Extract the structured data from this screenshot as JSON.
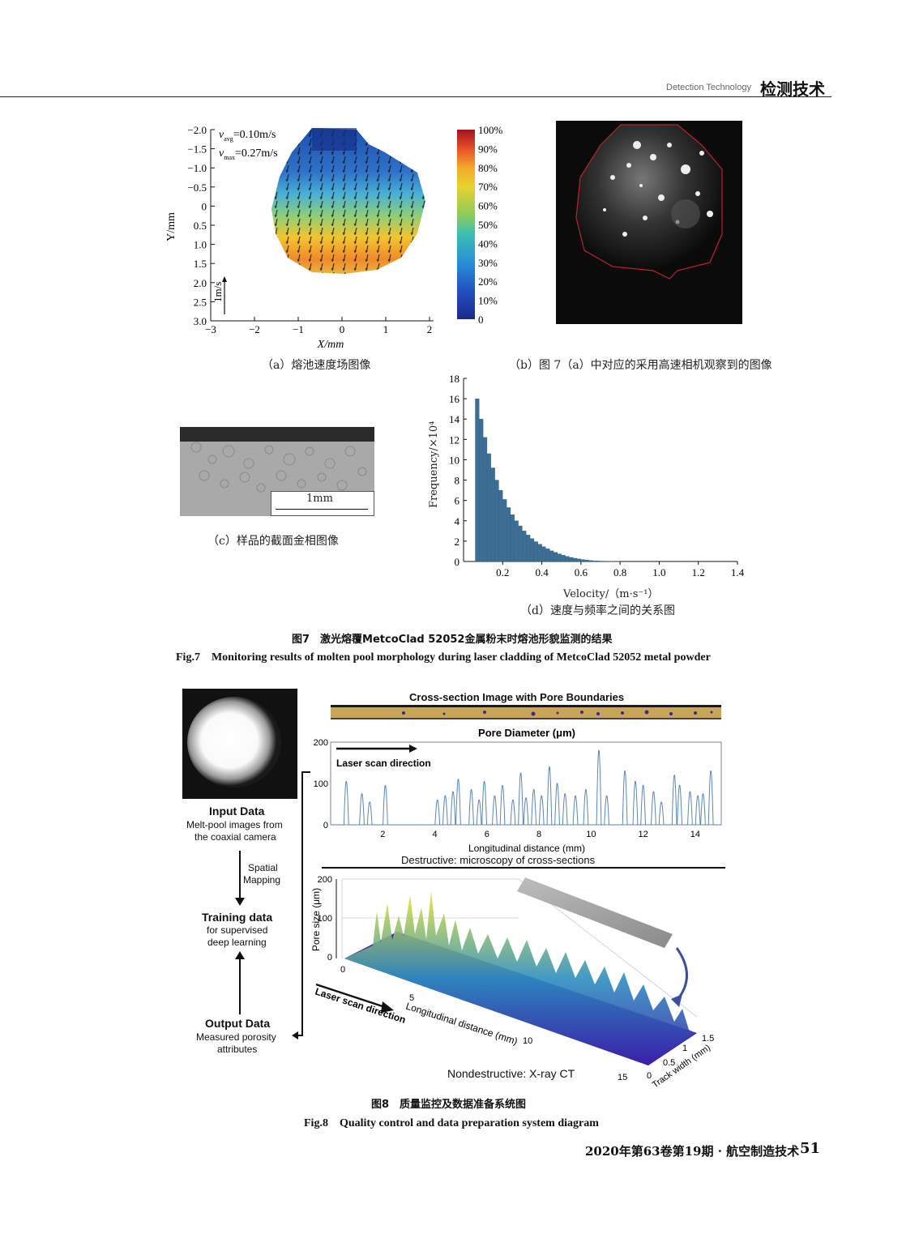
{
  "header": {
    "en": "Detection Technology",
    "cn": "检测技术"
  },
  "fig7": {
    "a": {
      "caption": "（a）熔池速度场图像",
      "v_avg_label": "v",
      "v_avg_sub": "avg",
      "v_avg_value": "=0.10m/s",
      "v_max_label": "v",
      "v_max_sub": "max",
      "v_max_value": "=0.27m/s",
      "ylabel": "Y/mm",
      "xlabel": "X/mm",
      "scale_label": "1m/s",
      "yticks": [
        "−2.0",
        "−1.5",
        "−1.0",
        "−0.5",
        "0",
        "0.5",
        "1.0",
        "1.5",
        "2.0",
        "2.5",
        "3.0"
      ],
      "xticks": [
        "−3",
        "−2",
        "−1",
        "0",
        "1",
        "2"
      ],
      "colorbar": [
        "100%",
        "90%",
        "80%",
        "70%",
        "60%",
        "50%",
        "40%",
        "30%",
        "20%",
        "10%",
        "0"
      ]
    },
    "b": {
      "caption": "（b）图 7（a）中对应的采用高速相机观察到的图像"
    },
    "c": {
      "caption": "（c）样品的截面金相图像",
      "scale_label": "1mm"
    },
    "d": {
      "caption": "（d）速度与频率之间的关系图"
    },
    "title_cn": "图7　激光熔覆MetcoClad 52052金属粉末时熔池形貌监测的结果",
    "title_en": "Fig.7　Monitoring results of molten pool morphology during laser cladding of MetcoClad 52052 metal powder"
  },
  "chart_data": [
    {
      "type": "bar",
      "xlabel": "Velocity/（m·s⁻¹）",
      "ylabel": "Frequency/×10⁴",
      "xticks": [
        0.2,
        0.4,
        0.6,
        0.8,
        1.0,
        1.2,
        1.4
      ],
      "yticks": [
        0,
        2,
        4,
        6,
        8,
        10,
        12,
        14,
        16,
        18
      ],
      "xlim": [
        0.0,
        1.4
      ],
      "ylim": [
        0,
        18
      ],
      "x": [
        0.07,
        0.09,
        0.11,
        0.13,
        0.15,
        0.17,
        0.19,
        0.21,
        0.23,
        0.25,
        0.27,
        0.29,
        0.31,
        0.33,
        0.35,
        0.37,
        0.39,
        0.41,
        0.43,
        0.45,
        0.47,
        0.49,
        0.51,
        0.53,
        0.55,
        0.57,
        0.59,
        0.61,
        0.63,
        0.65,
        0.67,
        0.69,
        0.71,
        0.73,
        0.75,
        0.77,
        0.79
      ],
      "values": [
        16,
        14,
        12.2,
        10.6,
        9.2,
        8.0,
        7.0,
        6.1,
        5.3,
        4.6,
        4.0,
        3.5,
        3.0,
        2.6,
        2.25,
        1.95,
        1.7,
        1.45,
        1.25,
        1.05,
        0.9,
        0.75,
        0.62,
        0.5,
        0.4,
        0.32,
        0.25,
        0.19,
        0.14,
        0.1,
        0.07,
        0.05,
        0.04,
        0.03,
        0.02,
        0.01,
        0.01
      ]
    },
    {
      "type": "line",
      "title": "Pore Diameter (μm)",
      "xlabel": "Longitudinal distance (mm)",
      "xticks": [
        2,
        4,
        6,
        8,
        10,
        12,
        14
      ],
      "yticks": [
        0,
        100,
        200
      ],
      "xlim": [
        0,
        15
      ],
      "ylim": [
        0,
        200
      ],
      "annotation": "Laser scan direction",
      "peaks": [
        {
          "x": 0.6,
          "y": 105
        },
        {
          "x": 1.2,
          "y": 75
        },
        {
          "x": 1.5,
          "y": 55
        },
        {
          "x": 2.1,
          "y": 95
        },
        {
          "x": 4.1,
          "y": 60
        },
        {
          "x": 4.4,
          "y": 70
        },
        {
          "x": 4.7,
          "y": 80
        },
        {
          "x": 4.9,
          "y": 110
        },
        {
          "x": 5.4,
          "y": 85
        },
        {
          "x": 5.7,
          "y": 60
        },
        {
          "x": 5.9,
          "y": 105
        },
        {
          "x": 6.3,
          "y": 70
        },
        {
          "x": 6.6,
          "y": 95
        },
        {
          "x": 7.0,
          "y": 60
        },
        {
          "x": 7.3,
          "y": 125
        },
        {
          "x": 7.5,
          "y": 65
        },
        {
          "x": 7.8,
          "y": 85
        },
        {
          "x": 8.1,
          "y": 70
        },
        {
          "x": 8.4,
          "y": 140
        },
        {
          "x": 8.7,
          "y": 100
        },
        {
          "x": 9.0,
          "y": 75
        },
        {
          "x": 9.4,
          "y": 70
        },
        {
          "x": 9.8,
          "y": 85
        },
        {
          "x": 10.3,
          "y": 180
        },
        {
          "x": 10.6,
          "y": 70
        },
        {
          "x": 11.3,
          "y": 130
        },
        {
          "x": 11.7,
          "y": 105
        },
        {
          "x": 12.0,
          "y": 95
        },
        {
          "x": 12.4,
          "y": 80
        },
        {
          "x": 12.7,
          "y": 55
        },
        {
          "x": 13.2,
          "y": 120
        },
        {
          "x": 13.4,
          "y": 95
        },
        {
          "x": 13.8,
          "y": 80
        },
        {
          "x": 14.1,
          "y": 70
        },
        {
          "x": 14.3,
          "y": 75
        },
        {
          "x": 14.6,
          "y": 130
        }
      ]
    }
  ],
  "fig8": {
    "input_title": "Input Data",
    "input_desc1": "Melt-pool images from",
    "input_desc2": "the coaxial camera",
    "spatial1": "Spatial",
    "spatial2": "Mapping",
    "train_title": "Training data",
    "train_desc1": "for supervised",
    "train_desc2": "deep learning",
    "output_title": "Output Data",
    "output_desc1": "Measured porosity",
    "output_desc2": "attributes",
    "cross_title": "Cross-section Image with Pore Boundaries",
    "destructive": "Destructive: microscopy of cross-sections",
    "nondestructive": "Nondestructive: X-ray CT",
    "ct_ylabel": "Pore size (μm)",
    "ct_yticks": [
      "0",
      "100",
      "200"
    ],
    "ct_scan": "Laser scan direction",
    "ct_xlabel": "Longitudinal distance (mm)",
    "ct_xticks": [
      "0",
      "5",
      "10",
      "15"
    ],
    "ct_zlabel": "Track width (mm)",
    "ct_zticks": [
      "0",
      "0.5",
      "1",
      "1.5"
    ],
    "title_cn": "图8　质量监控及数据准备系统图",
    "title_en": "Fig.8　Quality control and data preparation system diagram"
  },
  "footer": {
    "text": "2020年第63卷第19期 · 航空制造技术",
    "page": "51"
  }
}
